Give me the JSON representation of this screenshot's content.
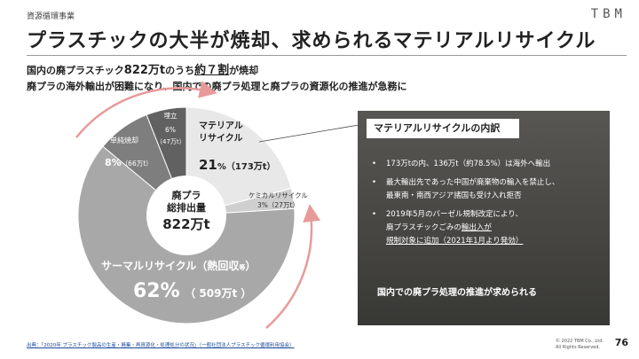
{
  "header": {
    "category": "資源循環事業",
    "logo": "TBM",
    "title": "プラスチックの大半が焼却、求められるマテリアルリサイクル"
  },
  "lead": {
    "line1_a": "国内の廃プラスチック",
    "line1_b": "822万t",
    "line1_c": "のうち",
    "line1_d": "約７割",
    "line1_e": "が焼却",
    "line2": "廃プラの海外輸出が困難になり、国内での廃プラ処理と廃プラの資源化の推進が急務に"
  },
  "chart_data": {
    "type": "pie",
    "center_label": [
      "廃プラ",
      "総排出量"
    ],
    "center_value": "822万t",
    "total": 822,
    "unit": "万t",
    "slices": [
      {
        "name": "マテリアルリサイクル",
        "percent": 21,
        "value": 173,
        "color": "#e8e8e8"
      },
      {
        "name": "ケミカルリサイクル",
        "percent": 3,
        "value": 27,
        "color": "#cfcfcf"
      },
      {
        "name": "サーマルリサイクル（熱回収等）",
        "percent": 62,
        "value": 509,
        "color": "#a8a8a8"
      },
      {
        "name": "単純焼却",
        "percent": 8,
        "value": 66,
        "color": "#7e7e7e"
      },
      {
        "name": "埋立",
        "percent": 6,
        "value": 47,
        "color": "#616161"
      }
    ]
  },
  "labels": {
    "material_1": "マテリアル",
    "material_2": "リサイクル",
    "material_pct": "21",
    "material_pct_unit": "%",
    "material_val": "（173万t）",
    "chemical_1": "ケミカルリサイクル",
    "chemical_2": "3%（27万t）",
    "thermal_name": "サーマルリサイクル（熱回収",
    "thermal_suffix": "等",
    "thermal_close": "）",
    "thermal_pct": "62%",
    "thermal_val": "（ 509万t ）",
    "incin_name": "単純焼却",
    "incin_pct": "8%",
    "incin_val": "（66万t）",
    "landfill_name": "埋立",
    "landfill_pct": "6%",
    "landfill_val": "（47万t）"
  },
  "panel": {
    "title": "マテリアルリサイクルの内訳",
    "b1": "173万tの内、136万t（約78.5%）は海外へ輸出",
    "b2a": "最大輸出先であった中国が廃棄物の輸入を禁止し、",
    "b2b": "最東南・南西アジア諸国も受け入れ拒否",
    "b3a": "2019年5月のバーゼル規制改定により、",
    "b3b_1": "廃プラスチックごみの",
    "b3b_2": "輸出入が",
    "b3c": "規制対象に追加（2021年1月より発効）",
    "footer": "国内での廃プラ処理の推進が求められる"
  },
  "footer": {
    "source": "出典：「2020年 プラスチック製品の生産・廃棄・再資源化・処理処分の状況」（一般社団法人プラスチック循環利用協会）",
    "copyright_1": "© 2022 TBM Co., Ltd.",
    "copyright_2": "All Rights Reserved.",
    "page": "76"
  },
  "colors": {
    "arrow": "#e89a9a",
    "panel_bg": "#4a4a48"
  }
}
